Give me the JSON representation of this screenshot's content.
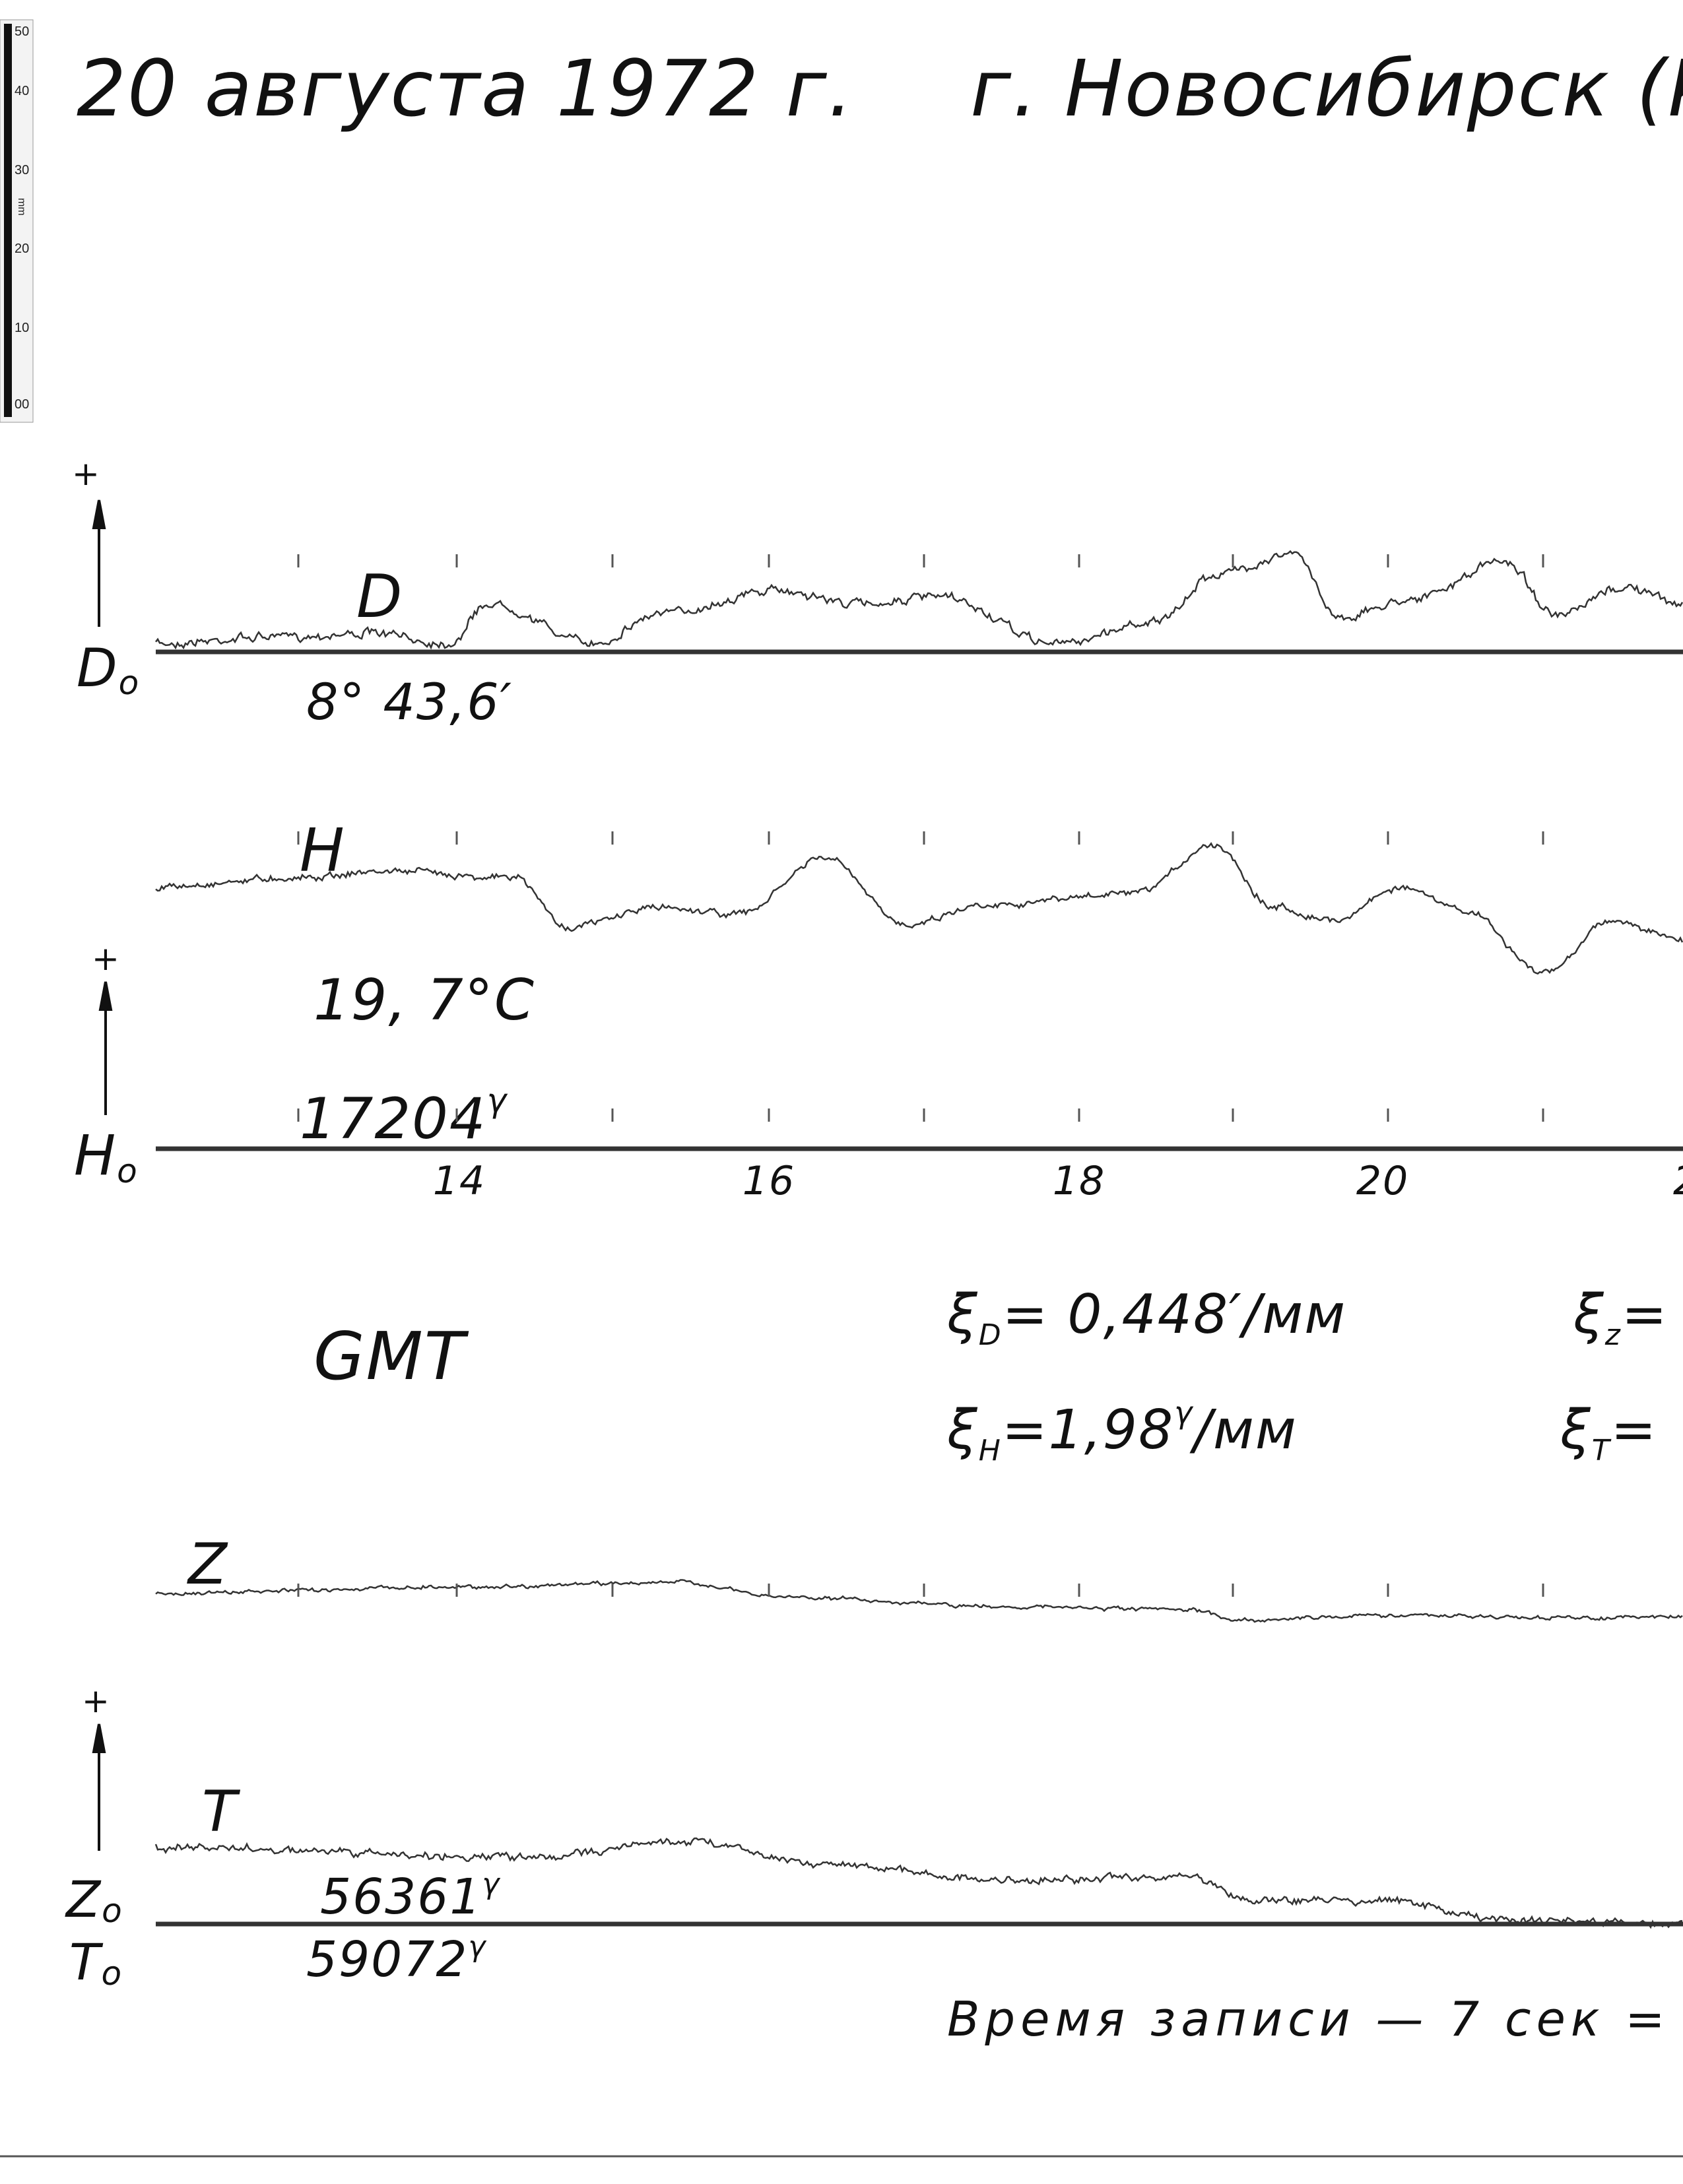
{
  "header": {
    "date": "20 августа 1972 г.",
    "place": "г. Новосибирск (Кл"
  },
  "ruler": {
    "labels": [
      "50",
      "40",
      "30",
      "20",
      "10",
      "00"
    ],
    "unit": "mm"
  },
  "plus": "+",
  "traces": {
    "D": {
      "label": "D",
      "base": "D",
      "base_sub": "o",
      "value": "8° 43,6′"
    },
    "H": {
      "label": "H",
      "base": "H",
      "base_sub": "o",
      "temperature": "19, 7°C",
      "value": "17204",
      "value_sup": "γ"
    },
    "Z": {
      "label": "Z",
      "base": "Z",
      "base_sub": "o",
      "value": "56361",
      "value_sup": "γ"
    },
    "T": {
      "label": "T",
      "base": "T",
      "base_sub": "o",
      "value": "59072",
      "value_sup": "γ"
    }
  },
  "hours": [
    "14",
    "16",
    "18",
    "20",
    "2"
  ],
  "time_label": "GMT",
  "scales": {
    "D": {
      "symbol": "ξ",
      "sub": "D",
      "rest": "= 0,448′/мм"
    },
    "Z": {
      "symbol": "ξ",
      "sub": "z",
      "rest": "="
    },
    "H": {
      "symbol": "ξ",
      "sub": "H",
      "rest": "=1,98",
      "sup": "γ",
      "tail": "/мм"
    },
    "T": {
      "symbol": "ξ",
      "sub": "T",
      "rest": "="
    }
  },
  "footer": "Время записи — 7 сек ="
}
